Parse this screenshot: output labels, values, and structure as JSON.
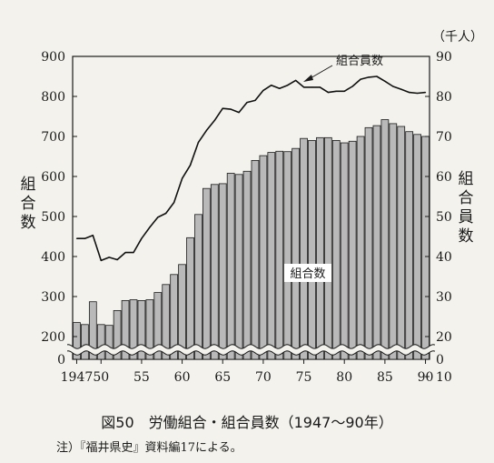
{
  "figure": {
    "caption": "図50　労働組合・組合員数（1947～90年）",
    "note": "注）『福井県史』資料編17による。",
    "left_axis_label": "組合数",
    "right_axis_label": "組合員数",
    "right_unit": "（千人）",
    "line_annotation": "組合員数",
    "bar_annotation": "組合数"
  },
  "chart_data": {
    "type": "bar",
    "title": "労働組合・組合員数（1947～90年）",
    "x_tick_labels": [
      "1947",
      "50",
      "55",
      "60",
      "65",
      "70",
      "75",
      "80",
      "85",
      "90"
    ],
    "x_tick_years": [
      1947,
      1950,
      1955,
      1960,
      1965,
      1970,
      1975,
      1980,
      1985,
      1990
    ],
    "left_ticks": [
      0,
      200,
      300,
      400,
      500,
      600,
      700,
      800,
      900
    ],
    "right_ticks": [
      0,
      10,
      20,
      30,
      40,
      50,
      60,
      70,
      80,
      90
    ],
    "axis_break": true,
    "years": [
      1947,
      1948,
      1949,
      1950,
      1951,
      1952,
      1953,
      1954,
      1955,
      1956,
      1957,
      1958,
      1959,
      1960,
      1961,
      1962,
      1963,
      1964,
      1965,
      1966,
      1967,
      1968,
      1969,
      1970,
      1971,
      1972,
      1973,
      1974,
      1975,
      1976,
      1977,
      1978,
      1979,
      1980,
      1981,
      1982,
      1983,
      1984,
      1985,
      1986,
      1987,
      1988,
      1989,
      1990
    ],
    "series": [
      {
        "name": "組合数",
        "axis": "left",
        "kind": "bar",
        "values": [
          235,
          230,
          287,
          230,
          228,
          265,
          290,
          292,
          290,
          292,
          310,
          330,
          355,
          380,
          447,
          505,
          570,
          580,
          582,
          608,
          605,
          613,
          640,
          652,
          660,
          663,
          662,
          670,
          695,
          690,
          697,
          697,
          690,
          684,
          688,
          700,
          722,
          727,
          742,
          732,
          725,
          712,
          705,
          700
        ]
      },
      {
        "name": "組合員数",
        "axis": "right",
        "kind": "line",
        "values": [
          44.5,
          44.5,
          45.3,
          39.0,
          39.8,
          39.2,
          41.0,
          41.0,
          44.5,
          47.3,
          49.8,
          50.8,
          53.5,
          59.5,
          62.8,
          68.5,
          71.5,
          74.0,
          77.0,
          76.8,
          76.0,
          78.5,
          79.0,
          81.5,
          82.8,
          82.0,
          82.8,
          84.0,
          82.3,
          82.3,
          82.3,
          81.0,
          81.3,
          81.3,
          82.5,
          84.3,
          84.8,
          85.0,
          83.8,
          82.5,
          81.8,
          81.0,
          80.8,
          81.0
        ]
      }
    ]
  },
  "colors": {
    "background": "#f3f2ec",
    "bar_fill": "#b9b9b9",
    "bar_stroke": "#1a1a1a",
    "line": "#111111",
    "text": "#1a1a1a"
  }
}
